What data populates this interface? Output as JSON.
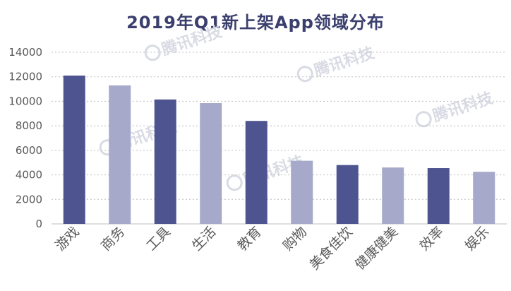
{
  "chart_data": {
    "type": "bar",
    "title": "2019年Q1新上架App领域分布",
    "xlabel": "",
    "ylabel": "",
    "categories": [
      "游戏",
      "商务",
      "工具",
      "生活",
      "教育",
      "购物",
      "美食佳饮",
      "健康健美",
      "效率",
      "娱乐"
    ],
    "values": [
      12100,
      11300,
      10150,
      9850,
      8400,
      5150,
      4800,
      4600,
      4550,
      4250
    ],
    "ylim": [
      0,
      14000
    ],
    "yticks": [
      0,
      2000,
      4000,
      6000,
      8000,
      10000,
      12000,
      14000
    ],
    "grid": true,
    "legend": "none",
    "colors": {
      "dark": "#4e5490",
      "light": "#a6a9c9",
      "axis": "#bfbfbf",
      "grid": "#bfbfbf",
      "text": "#595959"
    }
  },
  "watermark": {
    "text": "腾讯科技",
    "color": "#d9dbe4"
  }
}
